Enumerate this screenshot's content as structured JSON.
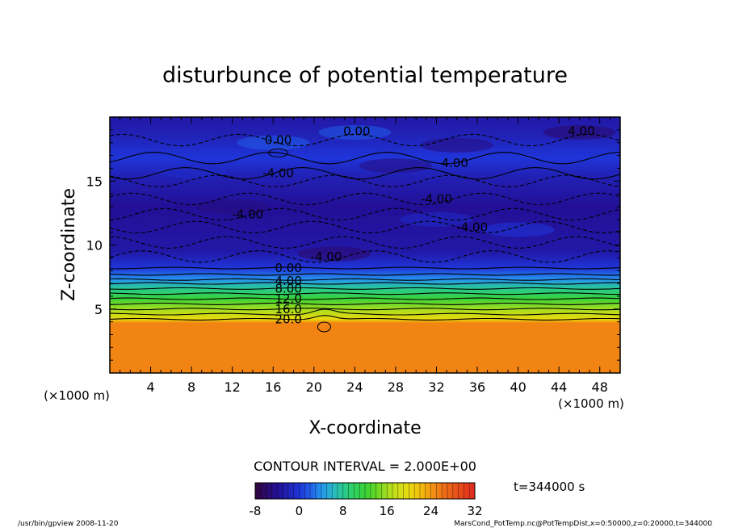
{
  "chart_data": {
    "type": "heatmap",
    "title": "disturbunce of potential temperature",
    "xlabel": "X-coordinate",
    "ylabel": "Z-coordinate",
    "x_unit": "(×1000 m)",
    "z_unit": "(×1000 m)",
    "xlim": [
      0,
      50
    ],
    "ylim": [
      0,
      20
    ],
    "x_ticks": [
      4,
      8,
      12,
      16,
      20,
      24,
      28,
      32,
      36,
      40,
      44,
      48
    ],
    "y_ticks": [
      5,
      10,
      15
    ],
    "contour_interval_label": "CONTOUR INTERVAL = 2.000E+00",
    "time_label": "t=344000 s",
    "colorbar": {
      "min": -8,
      "max": 32,
      "ticks": [
        -8,
        0,
        8,
        16,
        24,
        32
      ]
    },
    "contour_labels": [
      {
        "text": "0.00",
        "x": 16.5,
        "z": 18.2
      },
      {
        "text": "0.00",
        "x": 24.2,
        "z": 18.9
      },
      {
        "text": "4.00",
        "x": 46.2,
        "z": 18.9
      },
      {
        "text": "-4.00",
        "x": 16.5,
        "z": 15.6
      },
      {
        "text": "4.00",
        "x": 33.8,
        "z": 16.4
      },
      {
        "text": "-4.00",
        "x": 32.0,
        "z": 13.6
      },
      {
        "text": "-4.00",
        "x": 13.5,
        "z": 12.4
      },
      {
        "text": "-4.00",
        "x": 35.5,
        "z": 11.4
      },
      {
        "text": "-4.00",
        "x": 21.2,
        "z": 9.1
      },
      {
        "text": "0.00",
        "x": 17.5,
        "z": 8.2
      },
      {
        "text": "4.00",
        "x": 17.5,
        "z": 7.2
      },
      {
        "text": "8.00",
        "x": 17.5,
        "z": 6.6
      },
      {
        "text": "12.0",
        "x": 17.5,
        "z": 5.8
      },
      {
        "text": "16.0",
        "x": 17.5,
        "z": 5.0
      },
      {
        "text": "20.0",
        "x": 17.5,
        "z": 4.2
      }
    ],
    "field_profile": [
      {
        "z": 0.0,
        "value": 25
      },
      {
        "z": 3.9,
        "value": 25
      },
      {
        "z": 4.2,
        "value": 20
      },
      {
        "z": 5.0,
        "value": 16
      },
      {
        "z": 5.8,
        "value": 12
      },
      {
        "z": 6.6,
        "value": 8
      },
      {
        "z": 7.3,
        "value": 4
      },
      {
        "z": 8.2,
        "value": 0
      },
      {
        "z": 9.5,
        "value": -3
      },
      {
        "z": 13.0,
        "value": -4
      },
      {
        "z": 15.5,
        "value": -2
      },
      {
        "z": 16.8,
        "value": 0
      },
      {
        "z": 18.5,
        "value": -2
      },
      {
        "z": 20.0,
        "value": -3
      }
    ]
  },
  "footer": {
    "left": "/usr/bin/gpview  2008-11-20",
    "right": "MarsCond_PotTemp.nc@PotTempDist,x=0:50000,z=0:20000,t=344000"
  },
  "colors": {
    "cold": "#3a0a6e",
    "blue": "#2130d8",
    "cyan": "#29c6ef",
    "green": "#2ed22e",
    "yellow": "#f4d60c",
    "hot": "#e8331b"
  }
}
